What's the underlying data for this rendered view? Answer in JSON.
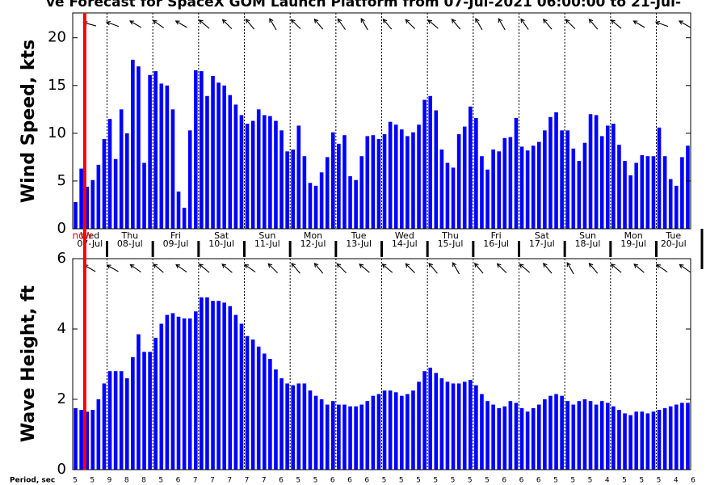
{
  "header": {
    "title": "ve Forecast for SpaceX GOM Launch Platform from 07-Jul-2021 06:00:00 to 21-Jul-"
  },
  "chart_data": [
    {
      "type": "bar",
      "ylabel": "Wind Speed, kts",
      "color": "#0000ff",
      "ylim": [
        0,
        22.6
      ],
      "yticks": [
        0,
        5,
        10,
        15,
        20
      ],
      "values": [
        2.8,
        6.3,
        4.4,
        5.1,
        6.7,
        9.4,
        11.5,
        7.3,
        12.5,
        10,
        17.7,
        17,
        6.9,
        16.1,
        16.5,
        15.2,
        15,
        12.5,
        3.9,
        2.2,
        10.3,
        16.6,
        16.5,
        13.9,
        16,
        15.3,
        15,
        14,
        13,
        11.9,
        11,
        11.3,
        12.5,
        11.9,
        11.8,
        11.3,
        10.3,
        8.1,
        8.3,
        10.8,
        7.6,
        4.8,
        4.5,
        5.9,
        7.5,
        10.1,
        8.9,
        9.8,
        5.5,
        5.1,
        7.6,
        9.7,
        9.8,
        9.4,
        9.9,
        11.2,
        10.9,
        10.4,
        9.7,
        10.1,
        10.9,
        13.5,
        13.9,
        12.4,
        8.3,
        6.9,
        6.4,
        9.9,
        10.7,
        12.8,
        11.6,
        7.6,
        6.2,
        8.3,
        8.1,
        9.5,
        9.6,
        11.6,
        8.6,
        8.2,
        8.7,
        9.1,
        10.3,
        11.7,
        12.2,
        10.3,
        10.3,
        8.4,
        7.1,
        9,
        12,
        11.9,
        9.7,
        10.8,
        11,
        8.8,
        7.1,
        5.6,
        6.9,
        7.7,
        7.6,
        7.6,
        10.6,
        7.6,
        5.2,
        4.5,
        7.5,
        8.7
      ],
      "arrow_headings_deg": [
        285,
        290,
        300,
        305,
        300,
        310,
        315,
        320,
        330,
        315,
        320,
        325,
        330,
        320,
        315,
        310,
        320,
        330,
        330,
        325,
        320,
        315,
        320,
        310,
        300,
        290,
        300
      ]
    },
    {
      "type": "bar",
      "ylabel": "Wave Height, ft",
      "color": "#0000ff",
      "ylim": [
        0,
        6
      ],
      "yticks": [
        0,
        2,
        4,
        6
      ],
      "values": [
        1.75,
        1.7,
        1.65,
        1.7,
        2.0,
        2.45,
        2.8,
        2.8,
        2.8,
        2.6,
        3.2,
        3.85,
        3.35,
        3.35,
        3.75,
        4.15,
        4.4,
        4.45,
        4.35,
        4.3,
        4.3,
        4.5,
        4.9,
        4.9,
        4.8,
        4.8,
        4.75,
        4.65,
        4.4,
        4.15,
        3.8,
        3.7,
        3.5,
        3.3,
        3.15,
        2.85,
        2.6,
        2.45,
        2.4,
        2.45,
        2.45,
        2.25,
        2.1,
        2.0,
        1.85,
        1.95,
        1.85,
        1.85,
        1.8,
        1.8,
        1.85,
        1.95,
        2.1,
        2.15,
        2.25,
        2.25,
        2.2,
        2.1,
        2.15,
        2.25,
        2.5,
        2.8,
        2.9,
        2.75,
        2.6,
        2.5,
        2.45,
        2.45,
        2.5,
        2.55,
        2.4,
        2.15,
        1.95,
        1.85,
        1.75,
        1.8,
        1.95,
        1.9,
        1.75,
        1.65,
        1.75,
        1.85,
        2.0,
        2.1,
        2.15,
        2.1,
        1.95,
        1.85,
        1.95,
        2.0,
        1.95,
        1.85,
        1.95,
        1.9,
        1.8,
        1.7,
        1.6,
        1.55,
        1.65,
        1.65,
        1.6,
        1.65,
        1.7,
        1.75,
        1.8,
        1.85,
        1.9,
        1.9
      ],
      "arrow_headings_deg": [
        300,
        300,
        305,
        310,
        305,
        310,
        310,
        305,
        315,
        320,
        320,
        315,
        310,
        310,
        315,
        320,
        330,
        320,
        315,
        310,
        320,
        330,
        320,
        310,
        310,
        305,
        305
      ]
    }
  ],
  "days": {
    "names": [
      "Wed",
      "Thu",
      "Fri",
      "Sat",
      "Sun",
      "Mon",
      "Tue",
      "Wed",
      "Thu",
      "Fri",
      "Sat",
      "Sun",
      "Mon",
      "Tue"
    ],
    "dates": [
      "07-Jul",
      "08-Jul",
      "09-Jul",
      "10-Jul",
      "11-Jul",
      "12-Jul",
      "13-Jul",
      "14-Jul",
      "15-Jul",
      "16-Jul",
      "17-Jul",
      "18-Jul",
      "19-Jul",
      "20-Jul"
    ]
  },
  "now_label": "now",
  "period": {
    "label": "Period, sec",
    "values": [
      5,
      5,
      9,
      8,
      8,
      5,
      6,
      7,
      7,
      7,
      7,
      7,
      6,
      5,
      5,
      6,
      6,
      6,
      5,
      5,
      5,
      5,
      5,
      5,
      5,
      6,
      6,
      6,
      5,
      5,
      5,
      4,
      5,
      5,
      5,
      4,
      6
    ]
  }
}
